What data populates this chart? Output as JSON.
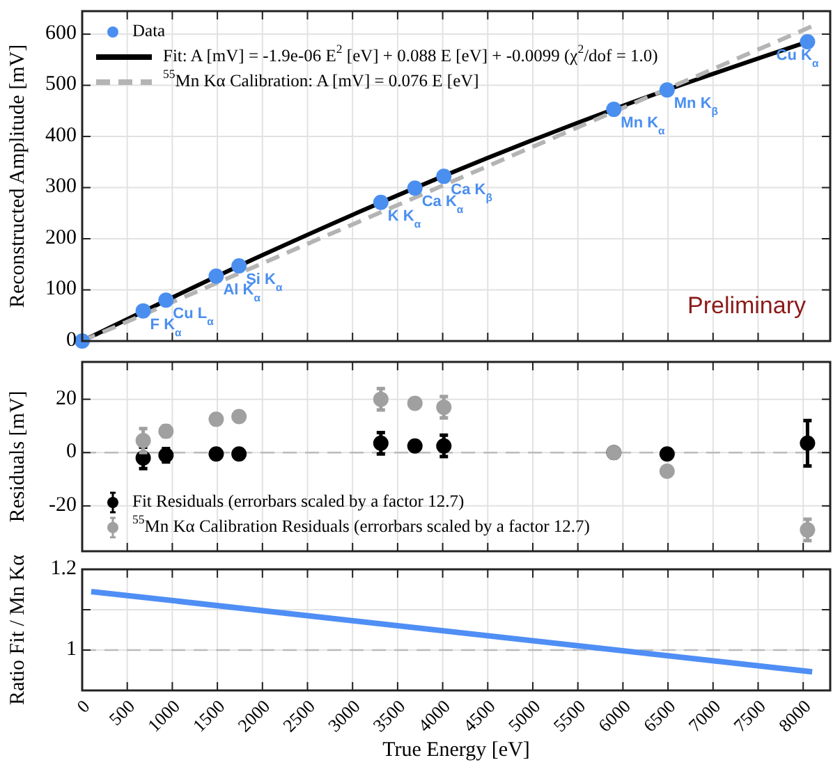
{
  "chart_data": [
    {
      "type": "scatter",
      "ylabel": "Reconstructed Amplitude [mV]",
      "xlim": [
        0,
        8300
      ],
      "xticks": [
        0,
        500,
        1000,
        1500,
        2000,
        2500,
        3000,
        3500,
        4000,
        4500,
        5000,
        5500,
        6000,
        6500,
        7000,
        7500,
        8000
      ],
      "ylim": [
        0,
        645
      ],
      "yticks": [
        0,
        100,
        200,
        300,
        400,
        500,
        600
      ],
      "tick_labels": "y",
      "grid": true,
      "legend": "top left",
      "series": [
        {
          "name": "Data",
          "marker": "circle",
          "color": "#4a8ff0",
          "x": [
            0,
            677,
            930,
            1487,
            1740,
            3314,
            3692,
            4013,
            5899,
            6490,
            8048
          ],
          "values": [
            0,
            59,
            80,
            127,
            147,
            271,
            299,
            322,
            453,
            491,
            585
          ]
        },
        {
          "name": "Fit: A [mV] = -1.9e-06 E$^{2}$ [eV] + 0.088 E [eV] + -0.0099 (χ$^{2}$/dof = 1.0)",
          "type": "line",
          "line_style": "solid",
          "color": "#000000",
          "x": [
            0,
            2000,
            4000,
            6000,
            8048
          ],
          "values": [
            0,
            168,
            322,
            460,
            585
          ]
        },
        {
          "name": "$^{55}$Mn Kα Calibration: A [mV] = 0.076 E [eV]",
          "type": "line",
          "line_style": "dashed",
          "color": "#b4b4b4",
          "x": [
            0,
            8160
          ],
          "values": [
            0,
            620
          ]
        }
      ],
      "annotations": [
        {
          "text": "F K$_{α}$",
          "x": 677,
          "y": 59
        },
        {
          "text": "Cu L$_{α}$",
          "x": 930,
          "y": 80
        },
        {
          "text": "Al K$_{α}$",
          "x": 1487,
          "y": 127
        },
        {
          "text": "Si K$_{α}$",
          "x": 1740,
          "y": 147
        },
        {
          "text": "K K$_{α}$",
          "x": 3314,
          "y": 271
        },
        {
          "text": "Ca K$_{α}$",
          "x": 3692,
          "y": 299
        },
        {
          "text": "Ca K$_{β}$",
          "x": 4013,
          "y": 322
        },
        {
          "text": "Mn K$_{α}$",
          "x": 5899,
          "y": 453
        },
        {
          "text": "Mn K$_{β}$",
          "x": 6490,
          "y": 491
        },
        {
          "text": "Cu K$_{α}$",
          "x": 8048,
          "y": 585
        },
        "Preliminary"
      ]
    },
    {
      "type": "scatter",
      "ylabel": "Residuals [mV]",
      "xlim": [
        0,
        8300
      ],
      "xticks": [
        0,
        500,
        1000,
        1500,
        2000,
        2500,
        3000,
        3500,
        4000,
        4500,
        5000,
        5500,
        6000,
        6500,
        7000,
        7500,
        8000
      ],
      "ylim": [
        -37,
        34
      ],
      "yticks": [
        -20,
        0,
        20
      ],
      "tick_labels": "y",
      "grid": true,
      "legend": "bottom left",
      "marker": "circle",
      "ref_lines": [
        {
          "axis": "y",
          "value": 0,
          "color": "#bbbbbb",
          "line_style": "dashed"
        }
      ],
      "series": [
        {
          "name": "Fit Residuals (errorbars scaled by a factor 12.7)",
          "color": "#000000",
          "x": [
            677,
            930,
            1487,
            1740,
            3314,
            3692,
            4013,
            5899,
            6490,
            8048
          ],
          "values": [
            -2,
            -1,
            -0.5,
            -0.5,
            3.5,
            2.5,
            2.5,
            0,
            -0.5,
            3.5
          ],
          "errors": [
            4,
            2.5,
            null,
            null,
            4,
            null,
            4,
            null,
            null,
            8.5
          ]
        },
        {
          "name": "$^{55}$Mn Kα Calibration Residuals (errorbars scaled by a factor 12.7)",
          "color": "#a0a0a0",
          "x": [
            677,
            930,
            1487,
            1740,
            3314,
            3692,
            4013,
            5899,
            6490,
            8048
          ],
          "values": [
            4.5,
            8,
            12.5,
            13.5,
            20,
            18.5,
            17,
            0,
            -7,
            -29
          ],
          "errors": [
            4.5,
            2,
            null,
            null,
            4,
            null,
            4,
            null,
            null,
            4
          ]
        }
      ]
    },
    {
      "type": "line",
      "ylabel": "Ratio Fit / Mn Kα",
      "xlabel": "True Energy [eV]",
      "xlim": [
        0,
        8300
      ],
      "xticks": [
        0,
        500,
        1000,
        1500,
        2000,
        2500,
        3000,
        3500,
        4000,
        4500,
        5000,
        5500,
        6000,
        6500,
        7000,
        7500,
        8000
      ],
      "ylim": [
        0.9,
        1.2
      ],
      "yticks": [
        {
          "value": 0.9,
          "label": null
        },
        1,
        {
          "value": 1.1,
          "label": null
        },
        1.2
      ],
      "grid": true,
      "ref_lines": [
        {
          "axis": "y",
          "value": 1,
          "color": "#bbbbbb",
          "line_style": "dashed"
        }
      ],
      "series": [
        {
          "color": "#4f8ef5",
          "x": [
            100,
            8100
          ],
          "values": [
            1.145,
            0.946
          ]
        }
      ]
    }
  ]
}
